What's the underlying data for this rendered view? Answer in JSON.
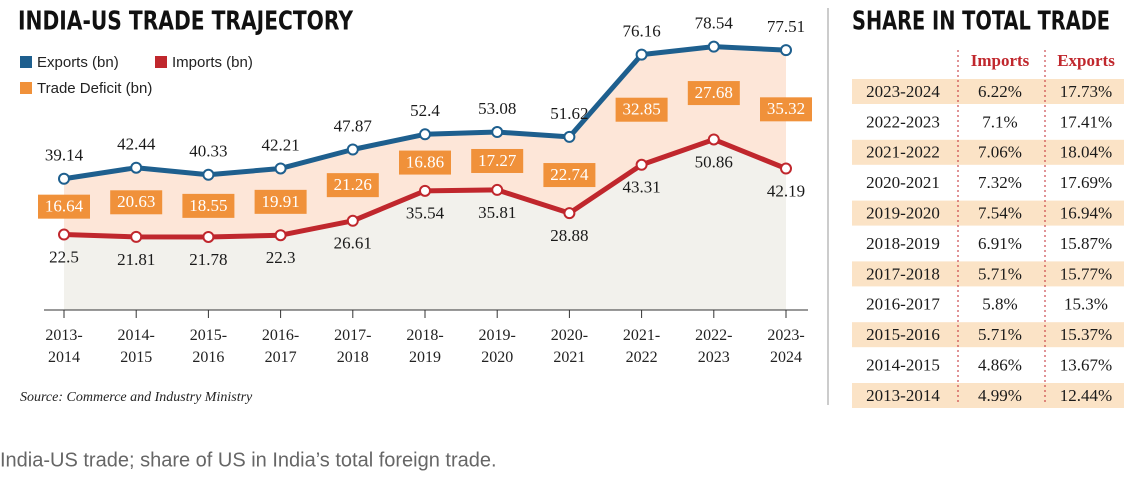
{
  "chart_data": {
    "type": "line",
    "title": "INDIA-US TRADE TRAJECTORY",
    "categories": [
      "2013-2014",
      "2014-2015",
      "2015-2016",
      "2016-2017",
      "2017-2018",
      "2018-2019",
      "2019-2020",
      "2020-2021",
      "2021-2022",
      "2022-2023",
      "2023-2024"
    ],
    "series": [
      {
        "name": "Exports (bn)",
        "color": "#1e5f8e",
        "values": [
          39.14,
          42.44,
          40.33,
          42.21,
          47.87,
          52.4,
          53.08,
          51.62,
          76.16,
          78.54,
          77.51
        ]
      },
      {
        "name": "Imports (bn)",
        "color": "#c0272d",
        "values": [
          22.5,
          21.81,
          21.78,
          22.3,
          26.61,
          35.54,
          35.81,
          28.88,
          43.31,
          50.86,
          42.19
        ]
      },
      {
        "name": "Trade Deficit  (bn)",
        "color": "#f0913a",
        "values": [
          16.64,
          20.63,
          18.55,
          19.91,
          21.26,
          16.86,
          17.27,
          22.74,
          32.85,
          27.68,
          35.32
        ]
      }
    ],
    "ylim": [
      0,
      85
    ],
    "source": "Source: Commerce and Industry Ministry"
  },
  "table": {
    "title": "SHARE IN TOTAL TRADE",
    "header": [
      "Imports",
      "Exports"
    ],
    "rows": [
      [
        "2023-2024",
        "6.22%",
        "17.73%"
      ],
      [
        "2022-2023",
        "7.1%",
        "17.41%"
      ],
      [
        "2021-2022",
        "7.06%",
        "18.04%"
      ],
      [
        "2020-2021",
        "7.32%",
        "17.69%"
      ],
      [
        "2019-2020",
        "7.54%",
        "16.94%"
      ],
      [
        "2018-2019",
        "6.91%",
        "15.87%"
      ],
      [
        "2017-2018",
        "5.71%",
        "15.77%"
      ],
      [
        "2016-2017",
        "5.8%",
        "15.3%"
      ],
      [
        "2015-2016",
        "5.71%",
        "15.37%"
      ],
      [
        "2014-2015",
        "4.86%",
        "13.67%"
      ],
      [
        "2013-2014",
        "4.99%",
        "12.44%"
      ]
    ]
  },
  "caption": "India-US trade; share of US in India’s total foreign trade."
}
